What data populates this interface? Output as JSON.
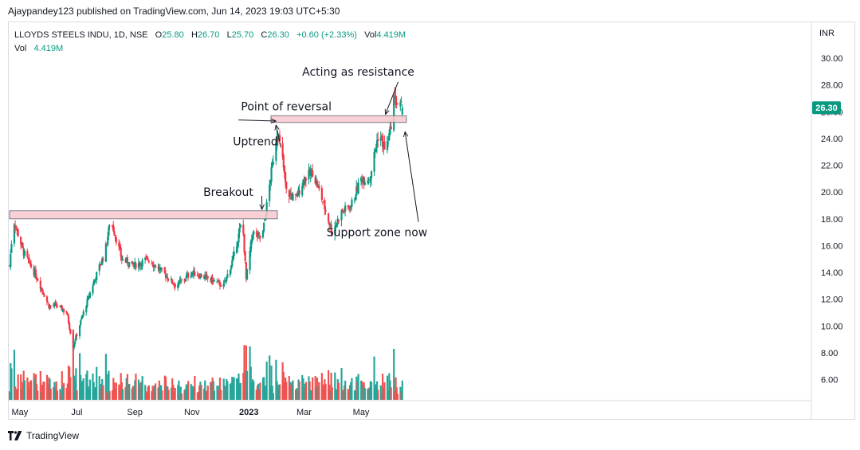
{
  "publisher_line": "Ajaypandey123 published on TradingView.com, Jun 14, 2023 19:03 UTC+5:30",
  "legend": {
    "symbol": "LLOYDS STEELS INDU, 1D, NSE",
    "open_label": "O",
    "open": "25.80",
    "high_label": "H",
    "high": "26.70",
    "low_label": "L",
    "low": "25.70",
    "close_label": "C",
    "close": "26.30",
    "change": "+0.60 (+2.33%)",
    "vol_label": "Vol",
    "vol": "4.419M",
    "vol_row_label": "Vol",
    "vol_row_value": "4.419M"
  },
  "currency": "INR",
  "footer_brand": "TradingView",
  "colors": {
    "up": "#089981",
    "down": "#f23645",
    "up_vol": "#26a69a",
    "down_vol": "#ef5350",
    "zone_fill": "#f8c8cf",
    "zone_stroke": "#787b86",
    "price_tag": "#089981"
  },
  "chart_data": {
    "type": "candlestick",
    "ylim": [
      4.0,
      31.0
    ],
    "y_ticks": [
      "30.00",
      "28.00",
      "26.00",
      "24.00",
      "22.00",
      "20.00",
      "18.00",
      "16.00",
      "14.00",
      "12.00",
      "10.00",
      "8.00",
      "6.00"
    ],
    "y_tick_values": [
      30,
      28,
      26,
      24,
      22,
      20,
      18,
      16,
      14,
      12,
      10,
      8,
      6
    ],
    "x_ticks": [
      {
        "label": "May",
        "date": "2022-05-01",
        "bold": false
      },
      {
        "label": "Jul",
        "date": "2022-07-01",
        "bold": false
      },
      {
        "label": "Sep",
        "date": "2022-09-01",
        "bold": false
      },
      {
        "label": "Nov",
        "date": "2022-11-01",
        "bold": false
      },
      {
        "label": "2023",
        "date": "2023-01-01",
        "bold": true
      },
      {
        "label": "Mar",
        "date": "2023-03-01",
        "bold": false
      },
      {
        "label": "May",
        "date": "2023-05-01",
        "bold": false
      }
    ],
    "last_price": "26.30",
    "last_price_value": 26.3,
    "price_path": [
      [
        "2022-04-20",
        14.5
      ],
      [
        "2022-04-24",
        18.0
      ],
      [
        "2022-05-05",
        15.5
      ],
      [
        "2022-05-20",
        13.5
      ],
      [
        "2022-06-01",
        11.5
      ],
      [
        "2022-06-10",
        11.5
      ],
      [
        "2022-06-20",
        11.0
      ],
      [
        "2022-06-27",
        8.5
      ],
      [
        "2022-07-08",
        11.0
      ],
      [
        "2022-07-20",
        13.5
      ],
      [
        "2022-07-31",
        15.5
      ],
      [
        "2022-08-06",
        18.0
      ],
      [
        "2022-08-18",
        15.0
      ],
      [
        "2022-08-31",
        14.5
      ],
      [
        "2022-09-15",
        15.0
      ],
      [
        "2022-10-01",
        14.0
      ],
      [
        "2022-10-15",
        13.0
      ],
      [
        "2022-11-01",
        14.0
      ],
      [
        "2022-11-20",
        13.5
      ],
      [
        "2022-12-05",
        13.0
      ],
      [
        "2022-12-15",
        15.0
      ],
      [
        "2022-12-25",
        18.0
      ],
      [
        "2022-12-29",
        13.5
      ],
      [
        "2023-01-05",
        17.0
      ],
      [
        "2023-01-15",
        16.5
      ],
      [
        "2023-01-22",
        20.0
      ],
      [
        "2023-01-31",
        24.5
      ],
      [
        "2023-02-05",
        23.0
      ],
      [
        "2023-02-10",
        20.0
      ],
      [
        "2023-02-20",
        19.5
      ],
      [
        "2023-03-01",
        21.0
      ],
      [
        "2023-03-10",
        21.5
      ],
      [
        "2023-03-20",
        19.5
      ],
      [
        "2023-03-31",
        17.0
      ],
      [
        "2023-04-10",
        18.5
      ],
      [
        "2023-04-20",
        19.0
      ],
      [
        "2023-05-01",
        21.0
      ],
      [
        "2023-05-10",
        21.0
      ],
      [
        "2023-05-20",
        24.5
      ],
      [
        "2023-05-27",
        23.0
      ],
      [
        "2023-06-01",
        24.5
      ],
      [
        "2023-06-05",
        27.0
      ],
      [
        "2023-06-10",
        26.5
      ],
      [
        "2023-06-14",
        26.3
      ]
    ],
    "volume_axis_max": 12.0,
    "zones": [
      {
        "name": "breakout zone",
        "from": "2022-04-20",
        "to": "2023-01-28",
        "low": 18.0,
        "high": 18.6
      },
      {
        "name": "resistance zone",
        "from": "2023-01-28",
        "to": "2023-06-15",
        "low": 25.2,
        "high": 25.7
      }
    ],
    "annotations": [
      {
        "text": "Acting as resistance",
        "at_date": "2023-04-28",
        "at_price": 28.7,
        "arrow_to_date": "2023-05-27",
        "arrow_to_price": 25.8
      },
      {
        "text": "Point of reversal",
        "at_date": "2023-02-10",
        "at_price": 26.1,
        "arrow_to_date": "2023-01-30",
        "arrow_to_price": 25.3
      },
      {
        "text": "Uptrend",
        "at_date": "2023-01-08",
        "at_price": 23.5,
        "arrow_to_date": "2023-01-30",
        "arrow_to_price": 25.0
      },
      {
        "text": "Breakout",
        "at_date": "2022-12-10",
        "at_price": 19.7,
        "arrow_to_date": "2023-01-15",
        "arrow_to_price": 18.7
      },
      {
        "text": "Support zone now",
        "at_date": "2023-05-18",
        "at_price": 16.7,
        "arrow_to_date": "2023-06-17",
        "arrow_to_price": 24.5
      }
    ]
  }
}
